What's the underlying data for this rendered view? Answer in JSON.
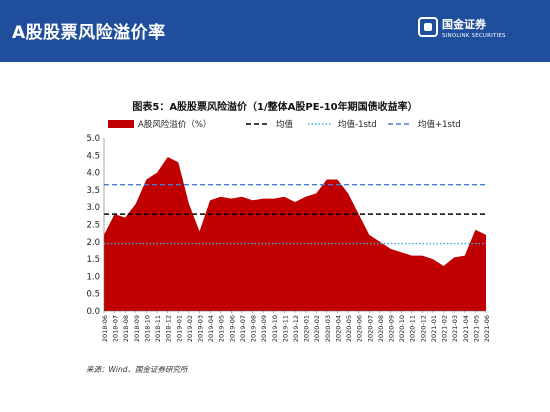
{
  "header": {
    "title": "A股股票风险溢价率",
    "logo_cn": "国金证券",
    "logo_en": "SINOLINK SECURITIES",
    "logo_icon": "sinolink-logo-icon"
  },
  "colors": {
    "header_bg": "#1f4e9c",
    "area": "#c00000",
    "mean_line": "#000000",
    "minus_std_line": "#3fb0e8",
    "plus_std_line": "#4a7fd0"
  },
  "chart_data": {
    "type": "area",
    "title": "图表5：A股股票风险溢价（1/整体A股PE-10年期国债收益率）",
    "legend": [
      "A股风险溢价（%）",
      "均值",
      "均值-1std",
      "均值+1std"
    ],
    "legend_position": "top",
    "ylim": [
      0,
      5
    ],
    "y_ticks": [
      "0.0",
      "0.5",
      "1.0",
      "1.5",
      "2.0",
      "2.5",
      "3.0",
      "3.5",
      "4.0",
      "4.5",
      "5.0"
    ],
    "x_ticks": [
      "2018-06",
      "2018-07",
      "2018-08",
      "2018-09",
      "2018-10",
      "2018-11",
      "2018-12",
      "2019-01",
      "2019-02",
      "2019-03",
      "2019-04",
      "2019-05",
      "2019-06",
      "2019-07",
      "2019-08",
      "2019-09",
      "2019-10",
      "2019-11",
      "2019-12",
      "2020-01",
      "2020-02",
      "2020-03",
      "2020-04",
      "2020-05",
      "2020-06",
      "2020-07",
      "2020-08",
      "2020-09",
      "2020-10",
      "2020-11",
      "2020-12",
      "2021-01",
      "2021-02",
      "2021-03",
      "2021-04",
      "2021-05",
      "2021-06"
    ],
    "x": [
      "2018-06",
      "2018-07",
      "2018-08",
      "2018-09",
      "2018-10",
      "2018-11",
      "2018-12",
      "2019-01",
      "2019-02",
      "2019-03",
      "2019-04",
      "2019-05",
      "2019-06",
      "2019-07",
      "2019-08",
      "2019-09",
      "2019-10",
      "2019-11",
      "2019-12",
      "2020-01",
      "2020-02",
      "2020-03",
      "2020-04",
      "2020-05",
      "2020-06",
      "2020-07",
      "2020-08",
      "2020-09",
      "2020-10",
      "2020-11",
      "2020-12",
      "2021-01",
      "2021-02",
      "2021-03",
      "2021-04",
      "2021-05",
      "2021-06"
    ],
    "series": [
      {
        "name": "A股风险溢价（%）",
        "values": [
          2.2,
          2.8,
          2.7,
          3.1,
          3.8,
          4.0,
          4.45,
          4.3,
          3.1,
          2.3,
          3.2,
          3.3,
          3.25,
          3.3,
          3.2,
          3.25,
          3.25,
          3.3,
          3.15,
          3.3,
          3.4,
          3.8,
          3.8,
          3.4,
          2.8,
          2.2,
          2.0,
          1.8,
          1.7,
          1.6,
          1.6,
          1.5,
          1.3,
          1.55,
          1.6,
          2.35,
          2.2
        ]
      }
    ],
    "mean": 2.8,
    "mean_minus_1std": 1.95,
    "mean_plus_1std": 3.65,
    "grid": false
  },
  "source_note": "来源：Wind、国金证券研究所"
}
